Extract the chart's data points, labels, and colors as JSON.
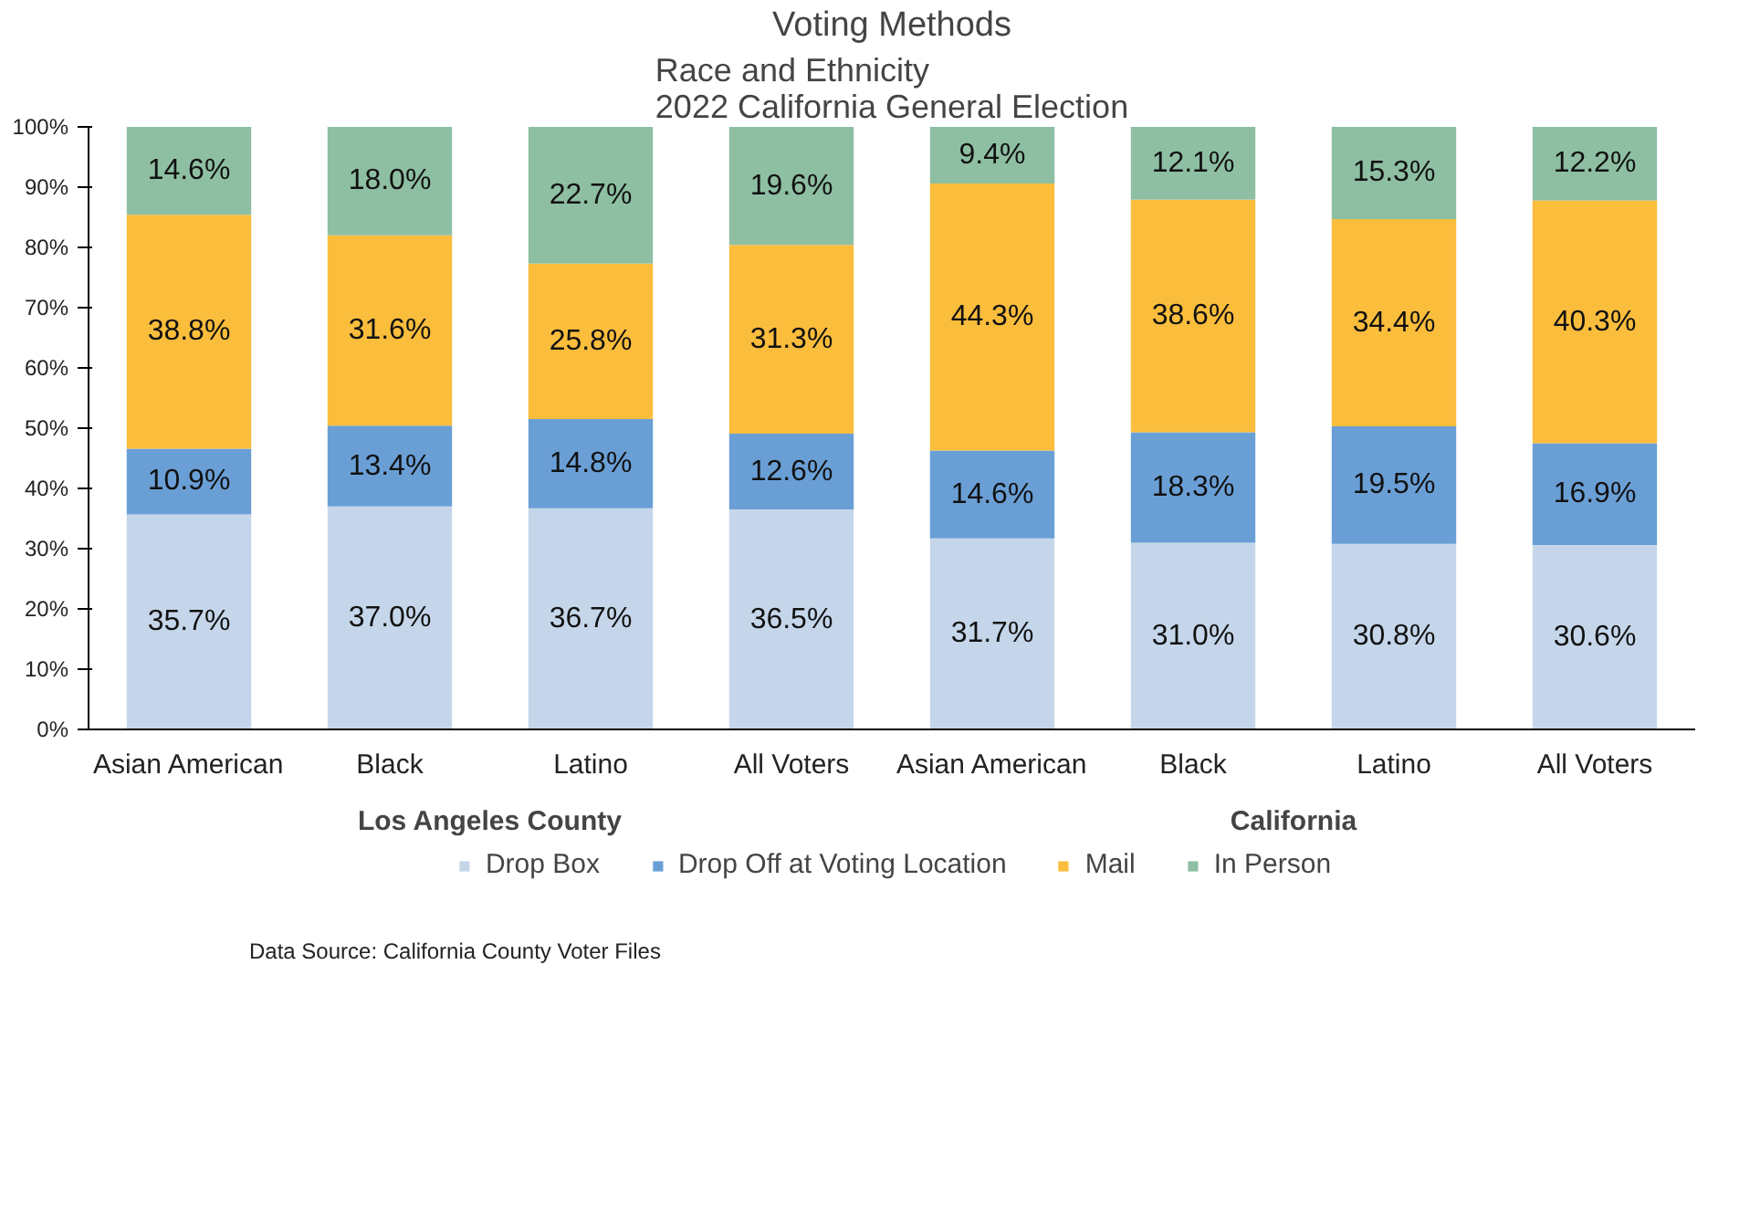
{
  "chart_data": {
    "type": "bar",
    "stacked": true,
    "title": "Voting Methods",
    "subtitle": "Race and Ethnicity\n2022 California General Election",
    "categories": [
      "Asian American",
      "Black",
      "Latino",
      "All Voters",
      "Asian American",
      "Black",
      "Latino",
      "All Voters"
    ],
    "series": [
      {
        "name": "Drop Box",
        "color": "#c5d6ea",
        "values": [
          35.7,
          37.0,
          36.7,
          36.5,
          31.7,
          31.0,
          30.8,
          30.6
        ],
        "value_labels": [
          "35.7%",
          "37.0%",
          "36.7%",
          "36.5%",
          "31.7%",
          "31.0%",
          "30.8%",
          "30.6%"
        ]
      },
      {
        "name": "Drop Off at Voting Location",
        "color": "#6a9fd6",
        "values": [
          10.9,
          13.4,
          14.8,
          12.6,
          14.6,
          18.3,
          19.5,
          16.9
        ],
        "value_labels": [
          "10.9%",
          "13.4%",
          "14.8%",
          "12.6%",
          "14.6%",
          "18.3%",
          "19.5%",
          "16.9%"
        ]
      },
      {
        "name": "Mail",
        "color": "#fbbd3c",
        "values": [
          38.8,
          31.6,
          25.8,
          31.3,
          44.3,
          38.6,
          34.4,
          40.3
        ],
        "value_labels": [
          "38.8%",
          "31.6%",
          "25.8%",
          "31.3%",
          "44.3%",
          "38.6%",
          "34.4%",
          "40.3%"
        ]
      },
      {
        "name": "In Person",
        "color": "#8ebfa3",
        "values": [
          14.6,
          18.0,
          22.7,
          19.6,
          9.4,
          12.1,
          15.3,
          12.2
        ],
        "value_labels": [
          "14.6%",
          "18.0%",
          "22.7%",
          "19.6%",
          "9.4%",
          "12.1%",
          "15.3%",
          "12.2%"
        ]
      }
    ],
    "ylim": [
      0,
      100
    ],
    "yticks": [
      {
        "value": 0,
        "label": "0%"
      },
      {
        "value": 10,
        "label": "10%"
      },
      {
        "value": 20,
        "label": "20%"
      },
      {
        "value": 30,
        "label": "30%"
      },
      {
        "value": 40,
        "label": "40%"
      },
      {
        "value": 50,
        "label": "50%"
      },
      {
        "value": 60,
        "label": "60%"
      },
      {
        "value": 70,
        "label": "70%"
      },
      {
        "value": 80,
        "label": "80%"
      },
      {
        "value": 90,
        "label": "90%"
      },
      {
        "value": 100,
        "label": "100%"
      }
    ],
    "legend": "bottom",
    "grid": false,
    "annotations": [
      "Los Angeles County",
      "California",
      "Data Source: California County Voter Files"
    ]
  }
}
